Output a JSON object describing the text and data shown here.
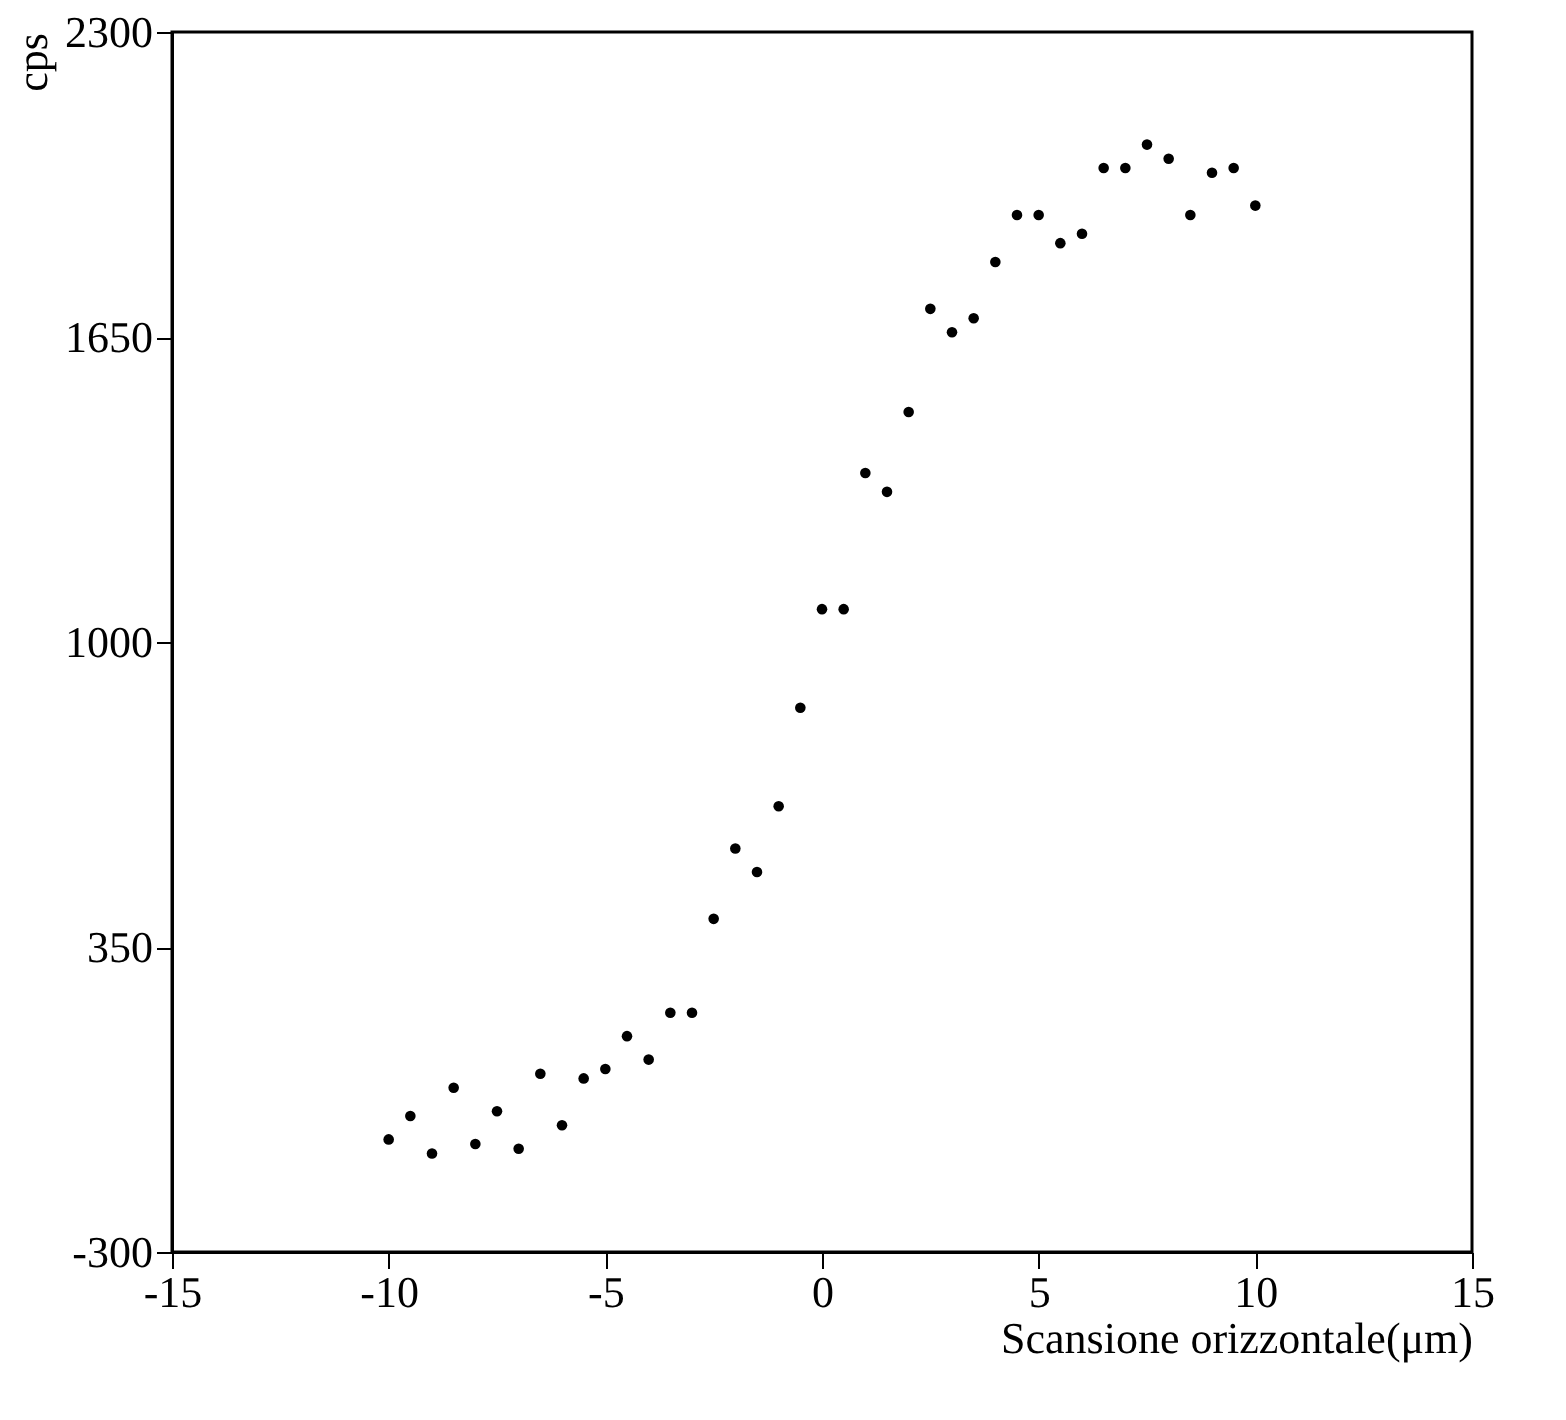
{
  "chart_data": {
    "type": "scatter",
    "xlabel": "Scansione orizzontale(μm)",
    "ylabel": "cps",
    "x": [
      -10,
      -9.5,
      -9,
      -8.5,
      -8,
      -7.5,
      -7,
      -6.5,
      -6,
      -5.5,
      -5,
      -4.5,
      -4,
      -3.5,
      -3,
      -2.5,
      -2,
      -1.5,
      -1,
      -0.5,
      0,
      0.5,
      1,
      1.5,
      2,
      2.5,
      3,
      3.5,
      4,
      4.5,
      5,
      5.5,
      6,
      6.5,
      7,
      7.5,
      8,
      8.5,
      9,
      9.5,
      10
    ],
    "series": [
      {
        "color": "#000000",
        "values": [
          -60,
          -10,
          -90,
          50,
          -70,
          0,
          -80,
          80,
          -30,
          70,
          90,
          160,
          110,
          210,
          210,
          410,
          560,
          510,
          650,
          860,
          1070,
          1070,
          1360,
          1320,
          1490,
          1710,
          1660,
          1690,
          1810,
          1910,
          1910,
          1850,
          1870,
          2010,
          2010,
          2060,
          2030,
          1910,
          2000,
          2010,
          1930
        ]
      }
    ],
    "xlim": [
      -15,
      15
    ],
    "xticks": [
      -15,
      -10,
      -5,
      0,
      5,
      10,
      15
    ],
    "ylim": [
      -300,
      2300
    ],
    "yticks": [
      -300,
      350,
      1000,
      1650,
      2300
    ],
    "grid": false,
    "marker": "circle"
  }
}
